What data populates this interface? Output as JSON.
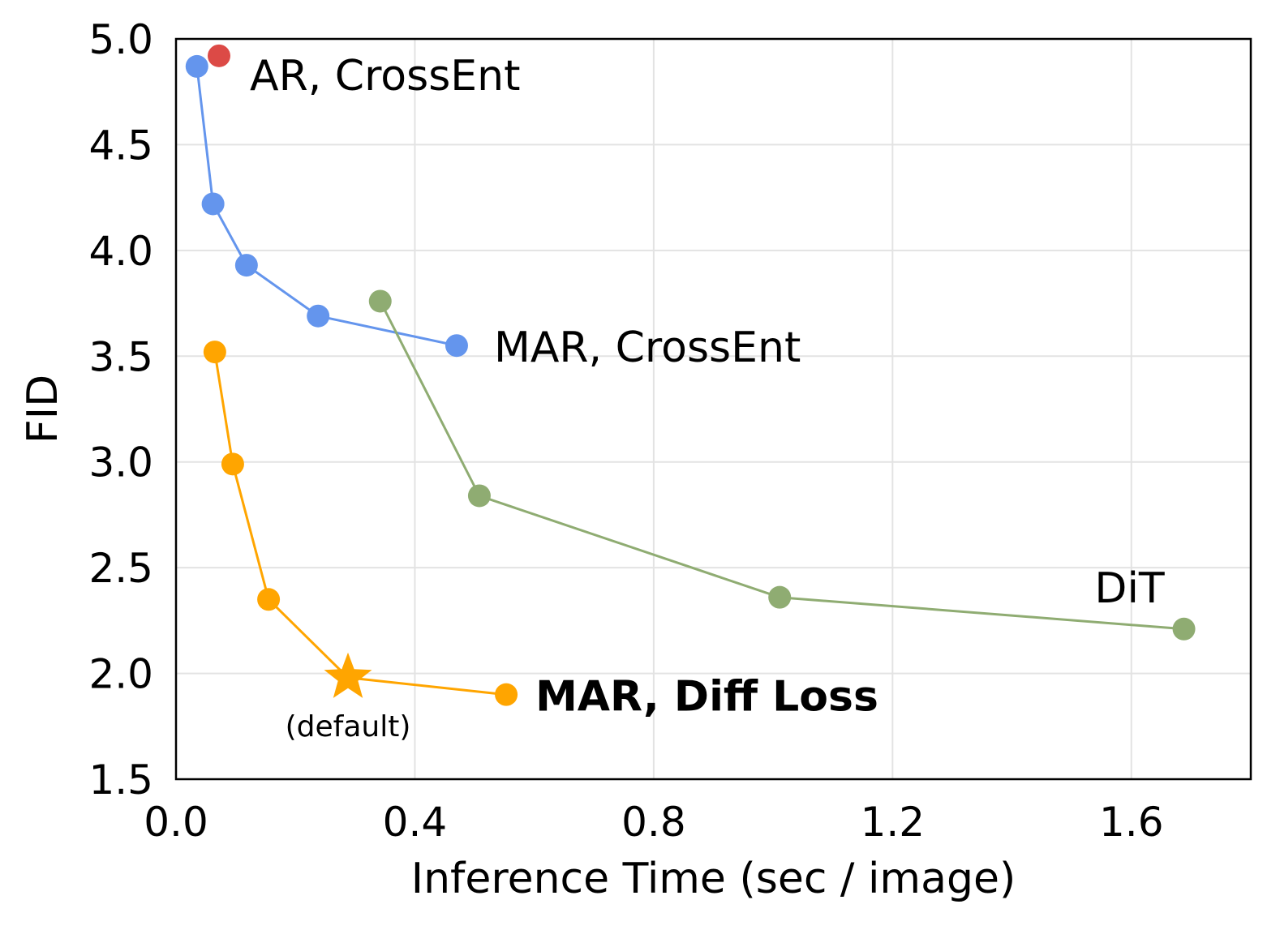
{
  "chart_data": {
    "type": "line",
    "title": "",
    "xlabel": "Inference Time (sec / image)",
    "ylabel": "FID",
    "xlim": [
      0.0,
      1.8
    ],
    "ylim": [
      1.5,
      5.0
    ],
    "xticks": [
      0.0,
      0.4,
      0.8,
      1.2,
      1.6
    ],
    "xtick_labels": [
      "0.0",
      "0.4",
      "0.8",
      "1.2",
      "1.6"
    ],
    "yticks": [
      1.5,
      2.0,
      2.5,
      3.0,
      3.5,
      4.0,
      4.5,
      5.0
    ],
    "ytick_labels": [
      "1.5",
      "2.0",
      "2.5",
      "3.0",
      "3.5",
      "4.0",
      "4.5",
      "5.0"
    ],
    "grid": true,
    "legend": "none",
    "series": [
      {
        "key": "mar-crossent",
        "name": "MAR, CrossEnt",
        "color": "#6495ed",
        "label_position": "right of last point",
        "bold": false,
        "x": [
          0.035,
          0.062,
          0.118,
          0.238,
          0.47
        ],
        "y": [
          4.87,
          4.22,
          3.93,
          3.69,
          3.55
        ]
      },
      {
        "key": "ar-crossent",
        "name": "AR, CrossEnt",
        "color": "#dc4a46",
        "label_position": "right of point",
        "bold": false,
        "x": [
          0.072
        ],
        "y": [
          4.92
        ]
      },
      {
        "key": "dit",
        "name": "DiT",
        "color": "#8fac72",
        "label_position": "above last point",
        "bold": false,
        "x": [
          0.342,
          0.508,
          1.011,
          1.688
        ],
        "y": [
          3.76,
          2.84,
          2.36,
          2.21
        ]
      },
      {
        "key": "mar-diff",
        "name": "MAR, Diff Loss",
        "color": "#ffa500",
        "label_position": "right of last point",
        "bold": true,
        "x": [
          0.065,
          0.095,
          0.155,
          0.288,
          0.553
        ],
        "y": [
          3.52,
          2.99,
          2.35,
          1.98,
          1.9
        ],
        "markers": [
          "circle",
          "circle",
          "circle",
          "star",
          "circle"
        ]
      }
    ],
    "annotations": [
      {
        "text": "(default)",
        "x": 0.288,
        "y": 1.98,
        "position": "below"
      }
    ]
  }
}
